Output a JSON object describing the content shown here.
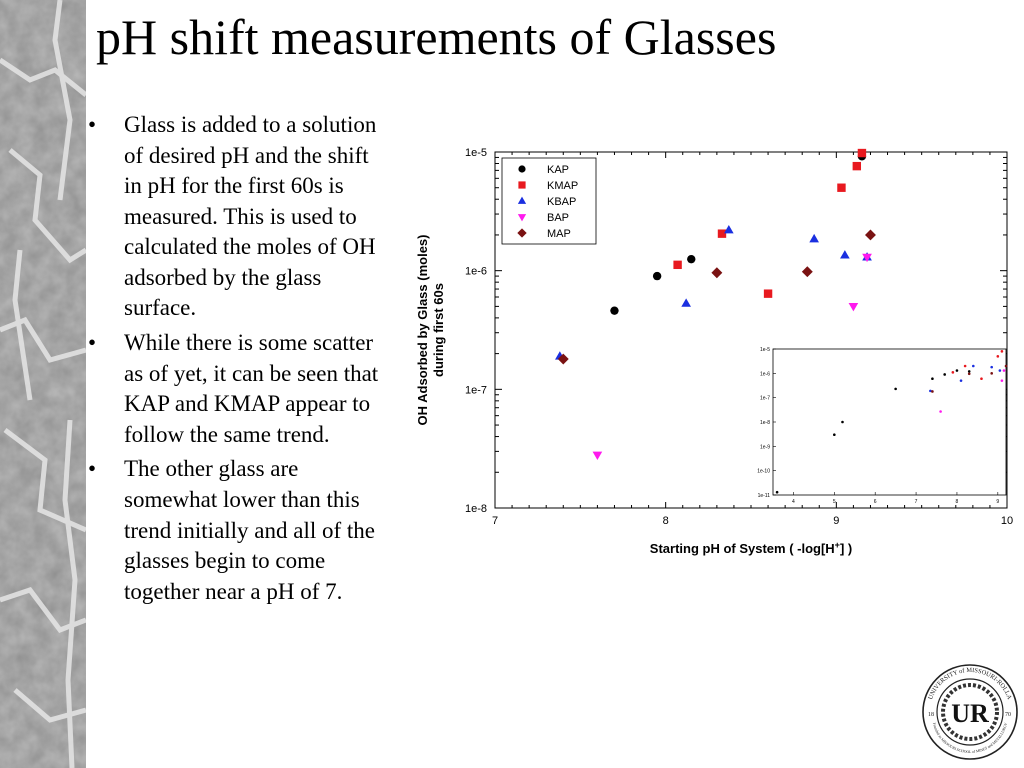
{
  "slide": {
    "title": "pH shift measurements of Glasses",
    "bullet_char": "•",
    "bullets": [
      "Glass is added to a solution of desired pH and the shift in pH for the first 60s is measured.  This is used to calculated the moles of OH adsorbed by the glass surface.",
      "While there is some scatter as of yet, it can be seen that KAP and KMAP appear to follow the same trend.",
      "The other glass are somewhat lower than this trend initially and all of the glasses begin to come together near a pH of 7."
    ]
  },
  "colors": {
    "kap": "#000000",
    "kmap": "#e8191f",
    "kbap": "#1a2fe0",
    "bap": "#ff19ee",
    "map": "#7a1212",
    "texture": "#8a8a8a"
  },
  "chart_data": [
    {
      "type": "scatter",
      "xlabel": "Starting pH of System ( -log[H+] )",
      "xlabel_parts": {
        "before": "Starting pH of System ( -log[H",
        "sup": "+",
        "after": "] )"
      },
      "ylabel_line1": "OH Adsorbed by Glass (moles)",
      "ylabel_line2": "during first 60s",
      "xlim": [
        7,
        10
      ],
      "ylim": [
        1e-08,
        1e-05
      ],
      "yscale": "log",
      "xticks": [
        "7",
        "8",
        "9",
        "10"
      ],
      "yticks": [
        "1e-8",
        "1e-7",
        "1e-6",
        "1e-5"
      ],
      "legend_position": "top-left",
      "series": [
        {
          "name": "KAP",
          "marker": "circle",
          "color": "#000000",
          "points": [
            [
              7.7,
              4.6e-07
            ],
            [
              7.95,
              9e-07
            ],
            [
              8.15,
              1.25e-06
            ],
            [
              9.15,
              9.2e-06
            ]
          ]
        },
        {
          "name": "KMAP",
          "marker": "square",
          "color": "#e8191f",
          "points": [
            [
              8.07,
              1.12e-06
            ],
            [
              8.33,
              2.05e-06
            ],
            [
              8.6,
              6.4e-07
            ],
            [
              9.03,
              5e-06
            ],
            [
              9.12,
              7.6e-06
            ],
            [
              9.15,
              9.8e-06
            ]
          ]
        },
        {
          "name": "KBAP",
          "marker": "triangle-up",
          "color": "#1a2fe0",
          "points": [
            [
              7.38,
              1.9e-07
            ],
            [
              8.12,
              5.3e-07
            ],
            [
              8.37,
              2.2e-06
            ],
            [
              8.87,
              1.85e-06
            ],
            [
              9.05,
              1.35e-06
            ],
            [
              9.18,
              1.3e-06
            ]
          ]
        },
        {
          "name": "BAP",
          "marker": "triangle-down",
          "color": "#ff19ee",
          "points": [
            [
              7.6,
              2.8e-08
            ],
            [
              9.1,
              5e-07
            ],
            [
              9.18,
              1.3e-06
            ]
          ]
        },
        {
          "name": "MAP",
          "marker": "diamond",
          "color": "#7a1212",
          "points": [
            [
              7.4,
              1.8e-07
            ],
            [
              8.3,
              9.6e-07
            ],
            [
              8.83,
              9.8e-07
            ],
            [
              9.2,
              2e-06
            ]
          ]
        }
      ]
    },
    {
      "type": "scatter",
      "inset": true,
      "xlim": [
        3.5,
        9.2
      ],
      "ylim": [
        1e-11,
        1e-05
      ],
      "yscale": "log",
      "xticks": [
        "4",
        "5",
        "6",
        "7",
        "8",
        "9"
      ],
      "yticks": [
        "1e-11",
        "1e-10",
        "1e-9",
        "1e-8",
        "1e-7",
        "1e-6",
        "1e-5"
      ],
      "series": [
        {
          "name": "KAP",
          "color": "#000000",
          "points": [
            [
              3.6,
              1.3e-11
            ],
            [
              5.0,
              3e-09
            ],
            [
              5.2,
              1e-08
            ],
            [
              6.5,
              2.3e-07
            ],
            [
              7.4,
              6e-07
            ],
            [
              7.7,
              9e-07
            ],
            [
              8.0,
              1.3e-06
            ],
            [
              8.3,
              1.2e-06
            ]
          ]
        },
        {
          "name": "KMAP",
          "color": "#e8191f",
          "points": [
            [
              7.9,
              1.1e-06
            ],
            [
              8.2,
              2e-06
            ],
            [
              8.6,
              6e-07
            ],
            [
              9.0,
              5e-06
            ],
            [
              9.1,
              8e-06
            ],
            [
              9.15,
              1.1e-05
            ]
          ]
        },
        {
          "name": "KBAP",
          "color": "#1a2fe0",
          "points": [
            [
              7.35,
              1.9e-07
            ],
            [
              8.1,
              5e-07
            ],
            [
              8.4,
              2e-06
            ],
            [
              8.85,
              1.8e-06
            ],
            [
              9.05,
              1.3e-06
            ]
          ]
        },
        {
          "name": "BAP",
          "color": "#ff19ee",
          "points": [
            [
              7.6,
              2.7e-08
            ],
            [
              9.1,
              5e-07
            ],
            [
              9.15,
              1.3e-06
            ]
          ]
        },
        {
          "name": "MAP",
          "color": "#7a1212",
          "points": [
            [
              7.4,
              1.8e-07
            ],
            [
              8.3,
              9.6e-07
            ],
            [
              8.85,
              1e-06
            ],
            [
              9.2,
              2e-06
            ]
          ]
        }
      ]
    }
  ],
  "logo": {
    "ring_top": "UNIVERSITY of MISSOURI-ROLLA",
    "ring_bottom": "Founded as MISSOURI SCHOOL of MINES and METALLURGY",
    "year_left": "18",
    "year_right": "70",
    "monogram": "UR"
  }
}
